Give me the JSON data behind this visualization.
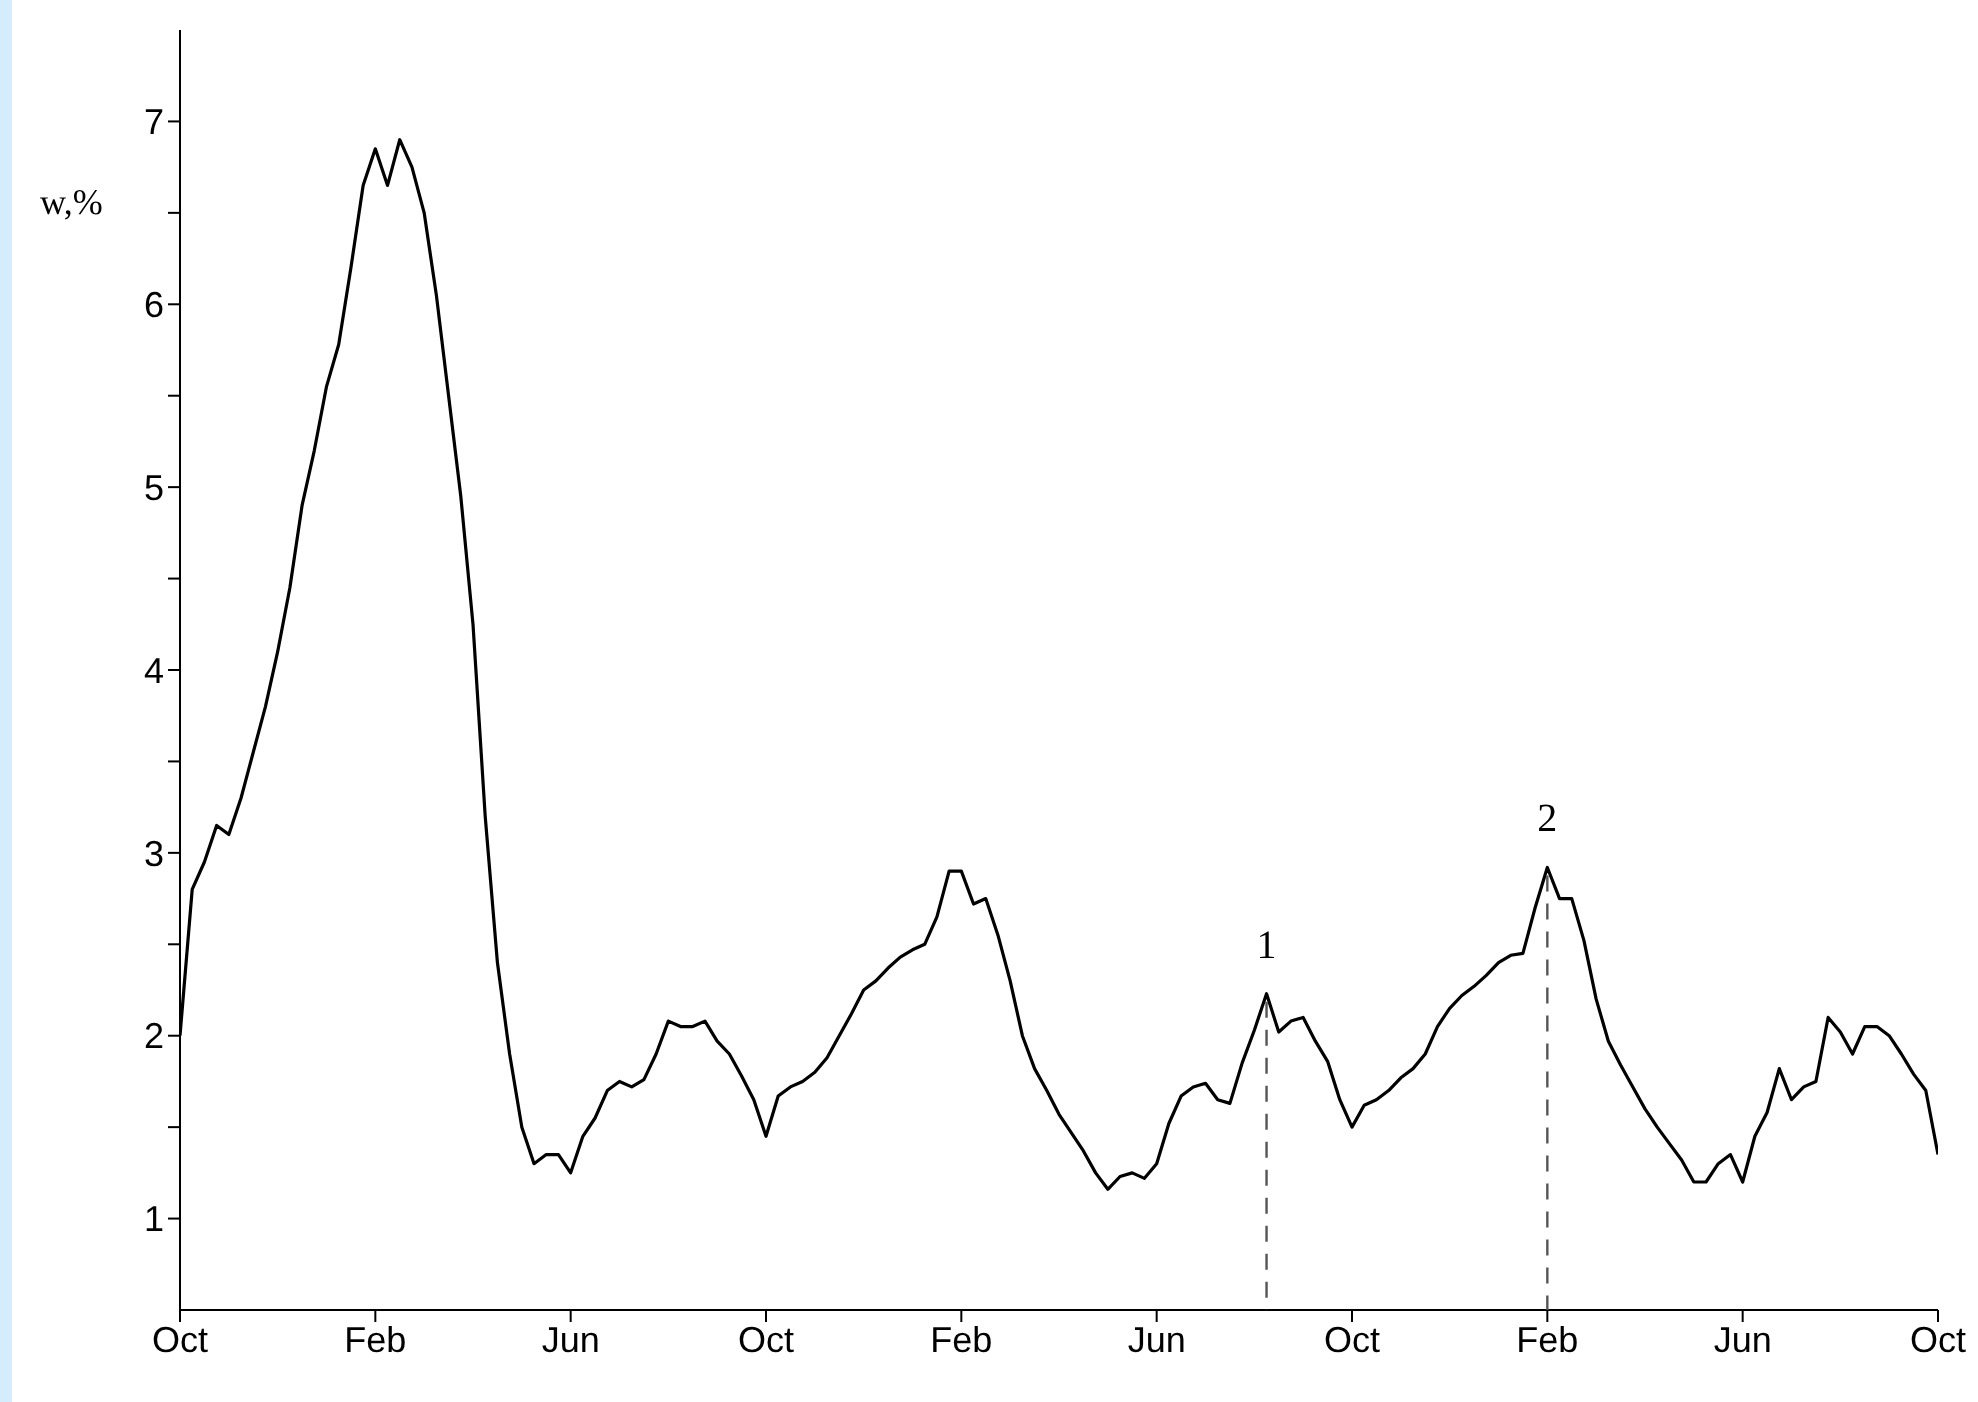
{
  "chart_data": {
    "type": "line",
    "ylabel": "w,%",
    "categories": [
      "Oct",
      null,
      null,
      null,
      null,
      null,
      null,
      null,
      null,
      null,
      null,
      null,
      null,
      null,
      null,
      null,
      "Feb",
      null,
      null,
      null,
      null,
      null,
      null,
      null,
      null,
      null,
      null,
      null,
      null,
      null,
      null,
      null,
      "Jun",
      null,
      null,
      null,
      null,
      null,
      null,
      null,
      null,
      null,
      null,
      null,
      null,
      null,
      null,
      null,
      "Oct",
      null,
      null,
      null,
      null,
      null,
      null,
      null,
      null,
      null,
      null,
      null,
      null,
      null,
      null,
      null,
      "Feb",
      null,
      null,
      null,
      null,
      null,
      null,
      null,
      null,
      null,
      null,
      null,
      null,
      null,
      null,
      null,
      "Jun",
      null,
      null,
      null,
      null,
      null,
      null,
      null,
      null,
      null,
      null,
      null,
      null,
      null,
      null,
      null,
      "Oct",
      null,
      null,
      null,
      null,
      null,
      null,
      null,
      null,
      null,
      null,
      null,
      null,
      null,
      null,
      null,
      "Feb",
      null,
      null,
      null,
      null,
      null,
      null,
      null,
      null,
      null,
      null,
      null,
      null,
      null,
      null,
      null,
      "Jun",
      null,
      null,
      null,
      null,
      null,
      null,
      null,
      null,
      null,
      null,
      null,
      null,
      null,
      null,
      null,
      "Oct"
    ],
    "ylim": [
      0.5,
      7.5
    ],
    "yticks": [
      1,
      {
        "value": 1.5,
        "label": null
      },
      2,
      {
        "value": 2.5,
        "label": null
      },
      3,
      {
        "value": 3.5,
        "label": null
      },
      4,
      {
        "value": 4.5,
        "label": null
      },
      5,
      {
        "value": 5.5,
        "label": null
      },
      6,
      {
        "value": 6.5,
        "label": null
      },
      7
    ],
    "series": [
      {
        "color": "#000000",
        "values": [
          2.0,
          2.8,
          2.95,
          3.15,
          3.1,
          3.3,
          3.55,
          3.8,
          4.1,
          4.45,
          4.9,
          5.2,
          5.55,
          5.78,
          6.2,
          6.65,
          6.85,
          6.65,
          6.9,
          6.75,
          6.5,
          6.05,
          5.5,
          4.95,
          4.25,
          3.2,
          2.4,
          1.9,
          1.5,
          1.3,
          1.35,
          1.35,
          1.25,
          1.45,
          1.55,
          1.7,
          1.75,
          1.72,
          1.76,
          1.9,
          2.08,
          2.05,
          2.05,
          2.08,
          1.97,
          1.9,
          1.78,
          1.65,
          1.45,
          1.67,
          1.72,
          1.75,
          1.8,
          1.88,
          2.0,
          2.12,
          2.25,
          2.3,
          2.37,
          2.43,
          2.47,
          2.5,
          2.65,
          2.9,
          2.9,
          2.72,
          2.75,
          2.55,
          2.3,
          2.0,
          1.82,
          1.7,
          1.57,
          1.47,
          1.37,
          1.25,
          1.16,
          1.23,
          1.25,
          1.22,
          1.3,
          1.52,
          1.67,
          1.72,
          1.74,
          1.65,
          1.63,
          1.85,
          2.03,
          2.23,
          2.02,
          2.08,
          2.1,
          1.97,
          1.86,
          1.65,
          1.5,
          1.62,
          1.65,
          1.7,
          1.77,
          1.82,
          1.9,
          2.05,
          2.15,
          2.22,
          2.27,
          2.33,
          2.4,
          2.44,
          2.45,
          2.7,
          2.92,
          2.75,
          2.75,
          2.52,
          2.2,
          1.97,
          1.84,
          1.72,
          1.6,
          1.5,
          1.41,
          1.32,
          1.2,
          1.2,
          1.3,
          1.35,
          1.2,
          1.45,
          1.58,
          1.82,
          1.65,
          1.72,
          1.75,
          2.1,
          2.02,
          1.9,
          2.05,
          2.05,
          2.0,
          1.9,
          1.79,
          1.7,
          1.35
        ]
      }
    ],
    "annotations": [
      {
        "text": "1",
        "y": 2.23
      },
      {
        "text": "2",
        "y": 2.92
      }
    ]
  }
}
